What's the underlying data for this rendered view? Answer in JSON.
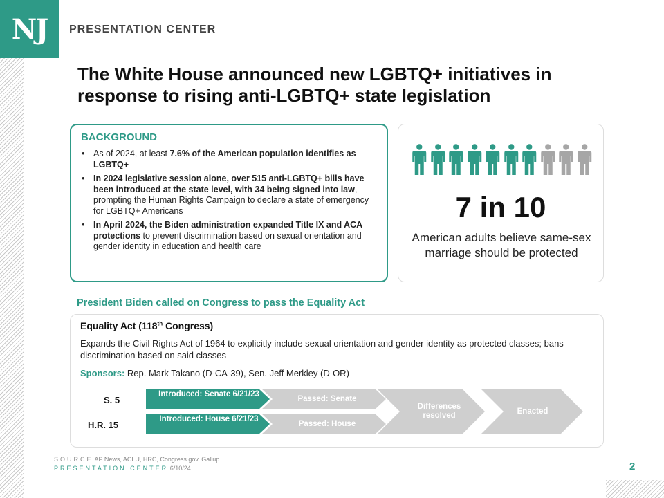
{
  "logo": {
    "text": "NJ",
    "color": "#2e9a87"
  },
  "header": {
    "label": "PRESENTATION CENTER"
  },
  "title": "The White House announced new LGBTQ+ initiatives in response to rising anti-LGBTQ+ state legislation",
  "background": {
    "heading": "BACKGROUND",
    "bullets": [
      {
        "pre": "As of 2024, at least ",
        "bold": "7.6% of the American population identifies as LGBTQ+",
        "post": ""
      },
      {
        "pre": "",
        "bold": "In 2024 legislative session alone, over 515 anti-LGBTQ+ bills have been introduced at the state level, with 34 being signed into law",
        "post": ", prompting the Human Rights Campaign to declare a state of emergency for LGBTQ+ Americans"
      },
      {
        "pre": "",
        "bold": "In April 2024, the Biden administration expanded Title IX and ACA  protections",
        "post": " to prevent discrimination based on sexual orientation and gender identity in education and health care"
      }
    ]
  },
  "stat": {
    "number": "7 in 10",
    "description": "American adults believe same-sex marriage should be protected",
    "highlighted_people": 7,
    "total_people": 10,
    "icon": "person-icon",
    "highlight_color": "#2e9a87",
    "muted_color": "#a6a6a6"
  },
  "call": "President Biden called on Congress to pass the Equality Act",
  "act": {
    "title": "Equality Act (118",
    "title_sup": "th",
    "title_end": " Congress)",
    "description": "Expands the Civil Rights Act of 1964 to explicitly include sexual orientation and gender identity as protected classes; bans discrimination based on said classes",
    "sponsors_label": "Sponsors:",
    "sponsors": " Rep. Mark Takano (D-CA-39), Sen. Jeff Merkley (D-OR)"
  },
  "timeline": {
    "senate_label": "S. 5",
    "house_label": "H.R. 15",
    "senate_introduced": "Introduced: Senate 6/21/23",
    "house_introduced": "Introduced: House 6/21/23",
    "senate_passed": "Passed: Senate",
    "house_passed": "Passed: House",
    "differences": "Differences resolved",
    "enacted": "Enacted",
    "active_color": "#2e9a87",
    "inactive_color": "#cfcfcf"
  },
  "footer": {
    "source_label": "SOURCE",
    "source_text": "AP News, ACLU, HRC, Congress.gov, Gallup.",
    "center_label": "PRESENTATION CENTER",
    "date": "6/10/24",
    "page": "2"
  }
}
